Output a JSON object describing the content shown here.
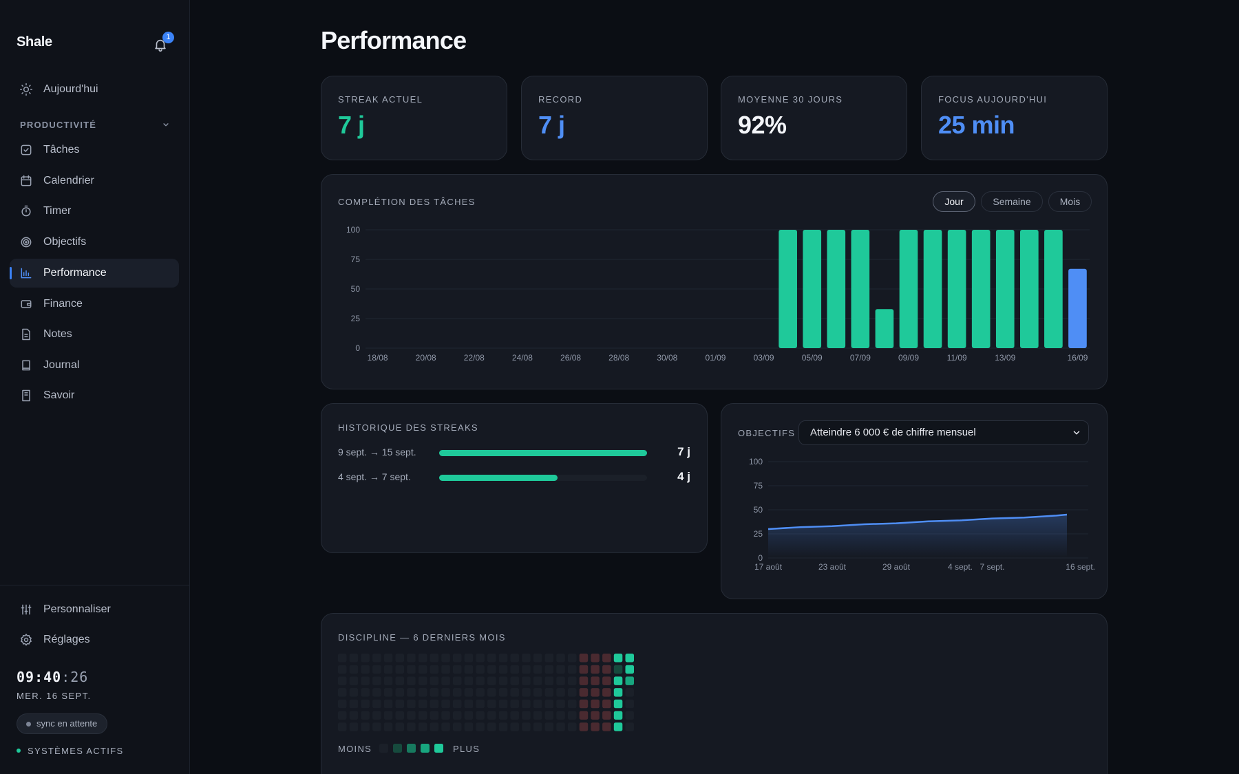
{
  "app": {
    "name": "Shale",
    "notifications": "1"
  },
  "sidebar": {
    "top_item": {
      "label": "Aujourd'hui",
      "icon": "sun-icon"
    },
    "section_label": "PRODUCTIVITÉ",
    "items": [
      {
        "label": "Tâches",
        "icon": "checkbox-icon"
      },
      {
        "label": "Calendrier",
        "icon": "calendar-icon"
      },
      {
        "label": "Timer",
        "icon": "stopwatch-icon"
      },
      {
        "label": "Objectifs",
        "icon": "target-icon"
      },
      {
        "label": "Performance",
        "icon": "bar-chart-icon",
        "active": true
      },
      {
        "label": "Finance",
        "icon": "wallet-icon"
      },
      {
        "label": "Notes",
        "icon": "document-icon"
      },
      {
        "label": "Journal",
        "icon": "book-icon"
      },
      {
        "label": "Savoir",
        "icon": "library-icon"
      }
    ],
    "bottom_items": [
      {
        "label": "Personnaliser",
        "icon": "sliders-icon"
      },
      {
        "label": "Réglages",
        "icon": "gear-icon"
      }
    ],
    "clock": {
      "hm": "09:40",
      "sep": ":",
      "sec": "26"
    },
    "date": "MER. 16 SEPT.",
    "sync": "sync en attente",
    "systems": "SYSTÈMES ACTIFS"
  },
  "page": {
    "title": "Performance"
  },
  "stats": [
    {
      "label": "STREAK ACTUEL",
      "value": "7 j",
      "color": "#1fc99a"
    },
    {
      "label": "RECORD",
      "value": "7 j",
      "color": "#4f8ef5"
    },
    {
      "label": "MOYENNE 30 JOURS",
      "value": "92%",
      "color": "#f4f6fa"
    },
    {
      "label": "FOCUS AUJOURD'HUI",
      "value": "25 min",
      "color": "#4f8ef5"
    }
  ],
  "completion": {
    "title": "COMPLÉTION DES TÂCHES",
    "ranges": [
      "Jour",
      "Semaine",
      "Mois"
    ],
    "active_range": "Jour"
  },
  "streaks": {
    "title": "HISTORIQUE DES STREAKS",
    "rows": [
      {
        "range": "9 sept. → 15 sept.",
        "days": "7 j",
        "fraction": 1.0
      },
      {
        "range": "4 sept. → 7 sept.",
        "days": "4 j",
        "fraction": 0.57
      }
    ]
  },
  "objectives": {
    "title": "OBJECTIFS",
    "selected": "Atteindre 6 000 € de chiffre mensuel"
  },
  "discipline": {
    "title": "DISCIPLINE — 6 DERNIERS MOIS",
    "legend_less": "MOINS",
    "legend_more": "PLUS",
    "levels": [
      "#1b2029",
      "#164a3d",
      "#177a5f",
      "#18a67f",
      "#1fc99a"
    ],
    "miss_color": "#4a2a30",
    "weeks": 26,
    "days": 7,
    "grid_by_week": [
      [
        0,
        0,
        0,
        0,
        0,
        0,
        0
      ],
      [
        0,
        0,
        0,
        0,
        0,
        0,
        0
      ],
      [
        0,
        0,
        0,
        0,
        0,
        0,
        0
      ],
      [
        0,
        0,
        0,
        0,
        0,
        0,
        0
      ],
      [
        0,
        0,
        0,
        0,
        0,
        0,
        0
      ],
      [
        0,
        0,
        0,
        0,
        0,
        0,
        0
      ],
      [
        0,
        0,
        0,
        0,
        0,
        0,
        0
      ],
      [
        0,
        0,
        0,
        0,
        0,
        0,
        0
      ],
      [
        0,
        0,
        0,
        0,
        0,
        0,
        0
      ],
      [
        0,
        0,
        0,
        0,
        0,
        0,
        0
      ],
      [
        0,
        0,
        0,
        0,
        0,
        0,
        0
      ],
      [
        0,
        0,
        0,
        0,
        0,
        0,
        0
      ],
      [
        0,
        0,
        0,
        0,
        0,
        0,
        0
      ],
      [
        0,
        0,
        0,
        0,
        0,
        0,
        0
      ],
      [
        0,
        0,
        0,
        0,
        0,
        0,
        0
      ],
      [
        0,
        0,
        0,
        0,
        0,
        0,
        0
      ],
      [
        0,
        0,
        0,
        0,
        0,
        0,
        0
      ],
      [
        0,
        0,
        0,
        0,
        0,
        0,
        0
      ],
      [
        0,
        0,
        0,
        0,
        0,
        0,
        0
      ],
      [
        0,
        0,
        0,
        0,
        0,
        0,
        0
      ],
      [
        0,
        0,
        0,
        0,
        0,
        0,
        0
      ],
      [
        "m",
        "m",
        "m",
        "m",
        "m",
        "m",
        "m"
      ],
      [
        "m",
        "m",
        "m",
        "m",
        "m",
        "m",
        "m"
      ],
      [
        "m",
        "m",
        "m",
        "m",
        "m",
        "m",
        "m"
      ],
      [
        4,
        1,
        4,
        4,
        4,
        4,
        4
      ],
      [
        4,
        4,
        3,
        0,
        0,
        0,
        0
      ]
    ]
  },
  "chart_data": [
    {
      "type": "bar",
      "title": "COMPLÉTION DES TÂCHES",
      "ylim": [
        0,
        100
      ],
      "y_ticks": [
        0,
        25,
        50,
        75,
        100
      ],
      "x_tick_labels": [
        "18/08",
        "20/08",
        "22/08",
        "24/08",
        "26/08",
        "28/08",
        "30/08",
        "01/09",
        "03/09",
        "05/09",
        "07/09",
        "09/09",
        "11/09",
        "13/09",
        "16/09"
      ],
      "categories": [
        "18/08",
        "19/08",
        "20/08",
        "21/08",
        "22/08",
        "23/08",
        "24/08",
        "25/08",
        "26/08",
        "27/08",
        "28/08",
        "29/08",
        "30/08",
        "31/08",
        "01/09",
        "02/09",
        "03/09",
        "04/09",
        "05/09",
        "06/09",
        "07/09",
        "08/09",
        "09/09",
        "10/09",
        "11/09",
        "12/09",
        "13/09",
        "14/09",
        "15/09",
        "16/09"
      ],
      "values": [
        0,
        0,
        0,
        0,
        0,
        0,
        0,
        0,
        0,
        0,
        0,
        0,
        0,
        0,
        0,
        0,
        0,
        100,
        100,
        100,
        100,
        33,
        100,
        100,
        100,
        100,
        100,
        100,
        100,
        67
      ],
      "colors": {
        "default": "#1fc99a",
        "today": "#4f8ef5"
      },
      "grid": true
    },
    {
      "type": "area",
      "title": "OBJECTIFS",
      "ylim": [
        0,
        100
      ],
      "y_ticks": [
        0,
        25,
        50,
        75,
        100
      ],
      "x_tick_labels": [
        "17 août",
        "23 août",
        "29 août",
        "4 sept.",
        "7 sept.",
        "16 sept."
      ],
      "x_tick_days": [
        0,
        6,
        12,
        18,
        21,
        30
      ],
      "x_domain": [
        0,
        30
      ],
      "series": [
        {
          "x": [
            0,
            3,
            6,
            9,
            12,
            15,
            18,
            21,
            24,
            27,
            28
          ],
          "values": [
            30,
            32,
            33,
            35,
            36,
            38,
            39,
            41,
            42,
            44,
            45
          ],
          "color": "#4f8ef5"
        }
      ],
      "grid": true
    }
  ]
}
